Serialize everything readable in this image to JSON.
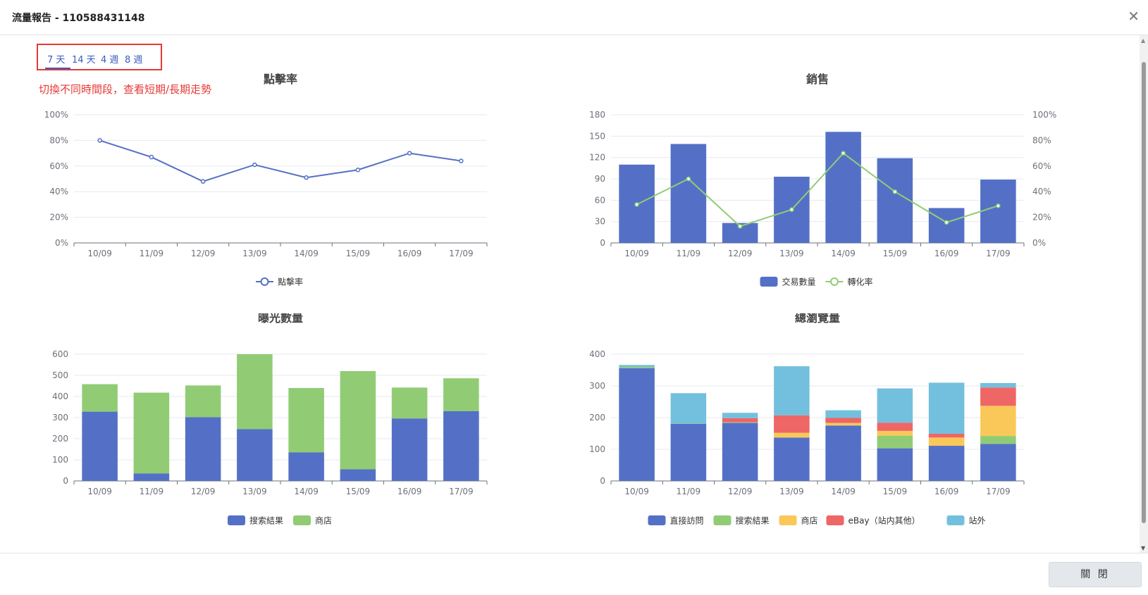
{
  "dialog": {
    "title": "流量報告 - 110588431148",
    "close_label": "關 閉"
  },
  "period_tabs": [
    {
      "label": "7 天",
      "active": true
    },
    {
      "label": "14 天",
      "active": false
    },
    {
      "label": "4 週",
      "active": false
    },
    {
      "label": "8 週",
      "active": false
    }
  ],
  "annotation": "切換不同時間段，查看短期/長期走勢",
  "colors": {
    "blue": "#5470c6",
    "green": "#91cc75",
    "yellow": "#fac858",
    "red": "#ee6666",
    "cyan": "#73c0de",
    "accent_red": "#e53935"
  },
  "chart_data": [
    {
      "id": "ctr",
      "type": "line",
      "title": "點擊率",
      "categories": [
        "10/09",
        "11/09",
        "12/09",
        "13/09",
        "14/09",
        "15/09",
        "16/09",
        "17/09"
      ],
      "ylim": [
        0,
        100
      ],
      "yticks": [
        "0%",
        "20%",
        "40%",
        "60%",
        "80%",
        "100%"
      ],
      "series": [
        {
          "name": "點擊率",
          "values": [
            80,
            67,
            48,
            61,
            51,
            57,
            70,
            64
          ]
        }
      ],
      "legend_position": "bottom"
    },
    {
      "id": "sales",
      "type": "bar",
      "title": "銷售",
      "categories": [
        "10/09",
        "11/09",
        "12/09",
        "13/09",
        "14/09",
        "15/09",
        "16/09",
        "17/09"
      ],
      "ylim": [
        0,
        180
      ],
      "yticks": [
        "0",
        "30",
        "60",
        "90",
        "120",
        "150",
        "180"
      ],
      "y2lim": [
        0,
        100
      ],
      "y2ticks": [
        "0%",
        "20%",
        "40%",
        "60%",
        "80%",
        "100%"
      ],
      "series": [
        {
          "name": "交易數量",
          "kind": "bar",
          "values": [
            110,
            139,
            28,
            93,
            156,
            119,
            49,
            89
          ]
        },
        {
          "name": "轉化率",
          "kind": "line",
          "axis": "right",
          "values": [
            30,
            50,
            13,
            26,
            70,
            40,
            16,
            29
          ]
        }
      ],
      "legend_position": "bottom"
    },
    {
      "id": "impressions",
      "type": "bar",
      "stacked": true,
      "title": "曝光數量",
      "categories": [
        "10/09",
        "11/09",
        "12/09",
        "13/09",
        "14/09",
        "15/09",
        "16/09",
        "17/09"
      ],
      "ylim": [
        0,
        600
      ],
      "yticks": [
        "0",
        "100",
        "200",
        "300",
        "400",
        "500",
        "600"
      ],
      "series": [
        {
          "name": "搜索結果",
          "values": [
            328,
            35,
            302,
            245,
            135,
            55,
            296,
            330
          ]
        },
        {
          "name": "商店",
          "values": [
            130,
            383,
            150,
            355,
            305,
            465,
            146,
            156
          ]
        }
      ],
      "legend_position": "bottom"
    },
    {
      "id": "pageviews",
      "type": "bar",
      "stacked": true,
      "title": "總瀏覽量",
      "categories": [
        "10/09",
        "11/09",
        "12/09",
        "13/09",
        "14/09",
        "15/09",
        "16/09",
        "17/09"
      ],
      "ylim": [
        0,
        400
      ],
      "yticks": [
        "0",
        "100",
        "200",
        "300",
        "400"
      ],
      "series": [
        {
          "name": "直接訪問",
          "values": [
            356,
            180,
            183,
            137,
            175,
            103,
            111,
            117
          ]
        },
        {
          "name": "搜索結果",
          "values": [
            4,
            1,
            2,
            0,
            0,
            40,
            0,
            25
          ]
        },
        {
          "name": "商店",
          "values": [
            0,
            0,
            0,
            15,
            8,
            15,
            26,
            95
          ]
        },
        {
          "name": "eBay（站内其他）",
          "values": [
            0,
            0,
            13,
            55,
            16,
            26,
            12,
            58
          ]
        },
        {
          "name": "站外",
          "values": [
            6,
            96,
            17,
            155,
            24,
            108,
            161,
            14
          ]
        }
      ],
      "legend_position": "bottom"
    }
  ]
}
